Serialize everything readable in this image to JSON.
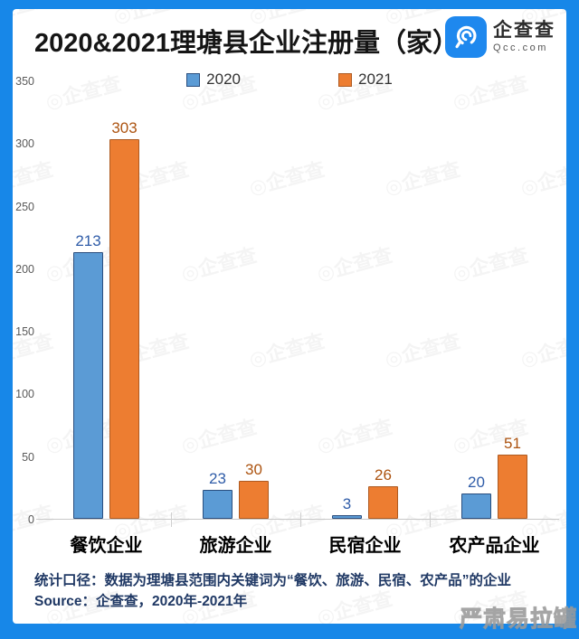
{
  "frame_color": "#1787E8",
  "header": {
    "title": "2020&2021理塘县企业注册量（家）",
    "logo": {
      "name": "企查查",
      "domain": "Qcc.com"
    }
  },
  "legend": [
    {
      "label": "2020",
      "color": "#5B9BD5",
      "border": "#2A4E7E"
    },
    {
      "label": "2021",
      "color": "#ED7D31",
      "border": "#AE5A21"
    }
  ],
  "chart_data": {
    "type": "bar",
    "title": "2020&2021理塘县企业注册量（家）",
    "categories": [
      "餐饮企业",
      "旅游企业",
      "民宿企业",
      "农产品企业"
    ],
    "series": [
      {
        "name": "2020",
        "values": [
          213,
          23,
          3,
          20
        ],
        "fill": "#5B9BD5",
        "edge": "#2A4E7E",
        "label_color": "#2F5CA8"
      },
      {
        "name": "2021",
        "values": [
          303,
          30,
          26,
          51
        ],
        "fill": "#ED7D31",
        "edge": "#AE5A21",
        "label_color": "#AC5310"
      }
    ],
    "xlabel": "",
    "ylabel": "",
    "ylim": [
      0,
      350
    ],
    "yticks": [
      0,
      50,
      100,
      150,
      200,
      250,
      300,
      350
    ],
    "grid": false,
    "legend_position": "top"
  },
  "footer": {
    "line1": "统计口径：数据为理塘县范围内关键词为“餐饮、旅游、民宿、农产品”的企业",
    "line2": "Source：企查查，2020年-2021年"
  },
  "watermark": {
    "pattern": "◎企查查",
    "bottom_right": "严肃易拉罐"
  }
}
